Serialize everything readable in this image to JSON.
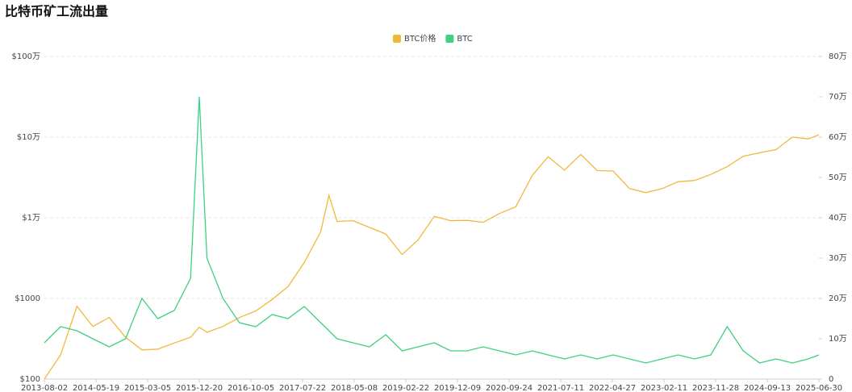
{
  "chart_data": {
    "type": "line",
    "title": "比特币矿工流出量",
    "ylog": true,
    "grid": true,
    "legend": "top",
    "x": [
      "2013-08-02",
      "2013-11-01",
      "2014-02-01",
      "2014-05-01",
      "2014-08-01",
      "2014-11-01",
      "2015-02-01",
      "2015-05-01",
      "2015-08-01",
      "2015-11-01",
      "2015-12-20",
      "2016-02-01",
      "2016-05-01",
      "2016-08-01",
      "2016-11-01",
      "2017-02-01",
      "2017-05-01",
      "2017-08-01",
      "2017-11-01",
      "2017-12-17",
      "2018-02-01",
      "2018-05-01",
      "2018-08-01",
      "2018-11-01",
      "2019-02-01",
      "2019-05-01",
      "2019-08-01",
      "2019-11-01",
      "2020-02-01",
      "2020-05-01",
      "2020-08-01",
      "2020-11-01",
      "2021-02-01",
      "2021-05-01",
      "2021-08-01",
      "2021-11-01",
      "2022-02-01",
      "2022-05-01",
      "2022-08-01",
      "2022-11-01",
      "2023-02-01",
      "2023-05-01",
      "2023-08-01",
      "2023-11-01",
      "2024-02-01",
      "2024-05-01",
      "2024-08-01",
      "2024-11-01",
      "2025-02-01",
      "2025-05-01",
      "2025-06-30"
    ],
    "series": [
      {
        "name": "BTC价格",
        "color": "#f0b93b",
        "values": [
          100,
          200,
          800,
          450,
          580,
          330,
          230,
          235,
          280,
          330,
          440,
          380,
          450,
          580,
          700,
          970,
          1400,
          2800,
          6700,
          19000,
          9000,
          9200,
          7600,
          6300,
          3500,
          5300,
          10400,
          9200,
          9300,
          8800,
          11300,
          13700,
          33500,
          57000,
          39000,
          61000,
          38500,
          38000,
          23000,
          20500,
          23000,
          28000,
          29000,
          34500,
          43000,
          58000,
          64000,
          70000,
          100000,
          95000,
          107000
        ]
      },
      {
        "name": "BTC",
        "color": "#3ed17f",
        "axis": "y2",
        "values": [
          90000,
          130000,
          120000,
          100000,
          80000,
          100000,
          200000,
          150000,
          170000,
          250000,
          700000,
          300000,
          200000,
          140000,
          130000,
          160000,
          150000,
          180000,
          140000,
          120000,
          100000,
          90000,
          80000,
          110000,
          70000,
          80000,
          90000,
          70000,
          70000,
          80000,
          70000,
          60000,
          70000,
          60000,
          50000,
          60000,
          50000,
          60000,
          50000,
          40000,
          50000,
          60000,
          50000,
          60000,
          130000,
          70000,
          40000,
          50000,
          40000,
          50000,
          60000
        ]
      }
    ],
    "xlim": [
      "2013-08-02",
      "2025-06-30"
    ],
    "xticks": [
      "2013-08-02",
      "2014-05-19",
      "2015-03-05",
      "2015-12-20",
      "2016-10-05",
      "2017-07-22",
      "2018-05-08",
      "2019-02-22",
      "2019-12-09",
      "2020-09-24",
      "2021-07-11",
      "2022-04-27",
      "2023-02-11",
      "2023-11-28",
      "2024-09-13",
      "2025-06-30"
    ],
    "ylim": [
      100,
      1000000
    ],
    "yticks": [
      {
        "value": 100,
        "label": "$100"
      },
      {
        "value": 1000,
        "label": "$1000"
      },
      {
        "value": 10000,
        "label": "$1万"
      },
      {
        "value": 100000,
        "label": "$10万"
      },
      {
        "value": 1000000,
        "label": "$100万"
      }
    ],
    "y2lim": [
      0,
      800000
    ],
    "y2ticks": [
      0,
      {
        "value": 100000,
        "label": "10万"
      },
      {
        "value": 200000,
        "label": "20万"
      },
      {
        "value": 300000,
        "label": "30万"
      },
      {
        "value": 400000,
        "label": "40万"
      },
      {
        "value": 500000,
        "label": "50万"
      },
      {
        "value": 600000,
        "label": "60万"
      },
      {
        "value": 700000,
        "label": "70万"
      },
      {
        "value": 800000,
        "label": "80万"
      }
    ]
  }
}
